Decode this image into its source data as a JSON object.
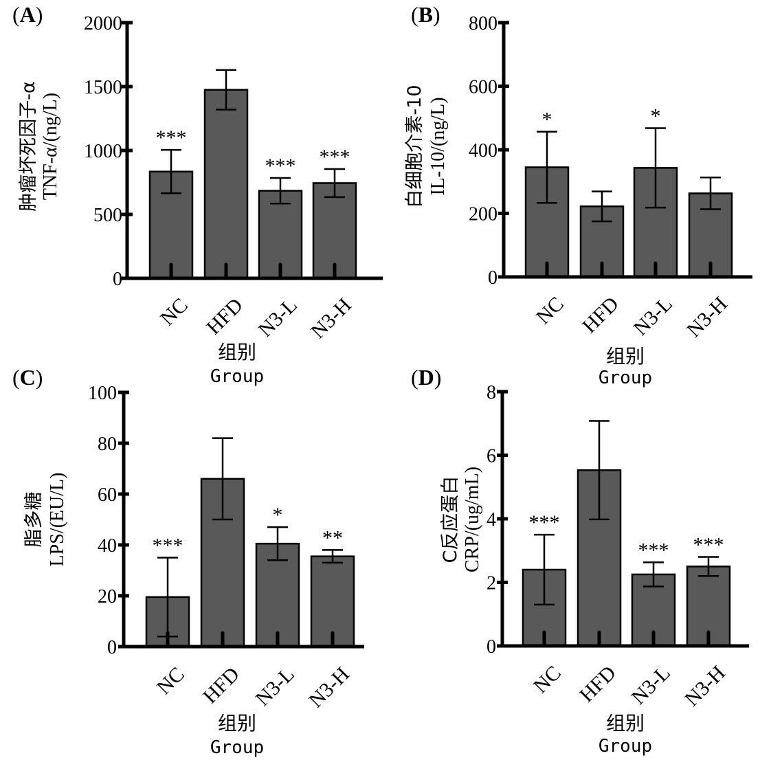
{
  "style": {
    "bar_color": "#595959",
    "axis_color": "#000000"
  },
  "chart_data": [
    {
      "type": "bar",
      "panel": "(A)",
      "panel_letter": "A",
      "ylabel_cn": "肿瘤坏死因子-α",
      "ylabel_en": "TNF-α/(ng/L)",
      "xlabel_cn": "组别",
      "xlabel_en": "Group",
      "categories": [
        "NC",
        "HFD",
        "N3-L",
        "N3-H"
      ],
      "values": [
        835,
        1475,
        685,
        745
      ],
      "errors": [
        170,
        155,
        100,
        110
      ],
      "significance": [
        "***",
        "",
        "***",
        "***"
      ],
      "ylim": [
        0,
        2000
      ],
      "yticks": [
        0,
        500,
        1000,
        1500,
        2000
      ]
    },
    {
      "type": "bar",
      "panel": "(B)",
      "panel_letter": "B",
      "ylabel_cn": "白细胞介素-10",
      "ylabel_en": "IL-10/(ng/L)",
      "xlabel_cn": "组别",
      "xlabel_en": "Group",
      "categories": [
        "NC",
        "HFD",
        "N3-L",
        "N3-H"
      ],
      "values": [
        345,
        222,
        343,
        263
      ],
      "errors": [
        112,
        47,
        125,
        50
      ],
      "significance": [
        "*",
        "",
        "*",
        ""
      ],
      "ylim": [
        0,
        800
      ],
      "yticks": [
        0,
        200,
        400,
        600,
        800
      ]
    },
    {
      "type": "bar",
      "panel": "(C)",
      "panel_letter": "C",
      "ylabel_cn": "脂多糖",
      "ylabel_en": "LPS/(EU/L)",
      "xlabel_cn": "组别",
      "xlabel_en": "Group",
      "categories": [
        "NC",
        "HFD",
        "N3-L",
        "N3-H"
      ],
      "values": [
        19.5,
        66,
        40.5,
        35.5
      ],
      "errors": [
        15.5,
        16,
        6.5,
        2.5
      ],
      "significance": [
        "***",
        "",
        "*",
        "**"
      ],
      "ylim": [
        0,
        100
      ],
      "yticks": [
        0,
        20,
        40,
        60,
        80,
        100
      ]
    },
    {
      "type": "bar",
      "panel": "(D)",
      "panel_letter": "D",
      "ylabel_cn": "C反应蛋白",
      "ylabel_en": "CRP/(ug/mL)",
      "xlabel_cn": "组别",
      "xlabel_en": "Group",
      "categories": [
        "NC",
        "HFD",
        "N3-L",
        "N3-H"
      ],
      "values": [
        2.4,
        5.53,
        2.25,
        2.5
      ],
      "errors": [
        1.1,
        1.55,
        0.38,
        0.3
      ],
      "significance": [
        "***",
        "",
        "***",
        "***"
      ],
      "ylim": [
        0,
        8
      ],
      "yticks": [
        0,
        2,
        4,
        6,
        8
      ]
    }
  ]
}
